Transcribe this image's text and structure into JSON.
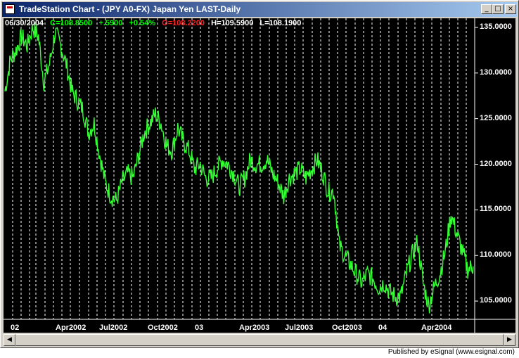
{
  "window": {
    "title": "TradeStation Chart - (JPY A0-FX) Japan Yen LAST-Daily",
    "buttons": {
      "minimize": "_",
      "maximize": "□",
      "close": "×"
    }
  },
  "header": {
    "date": "06/30/2004",
    "close": "C=108.8500",
    "change": "+.5900",
    "change_pct": "+0.54%",
    "open": "O=108.2200",
    "high": "H=109.5900",
    "low": "L=108.1900"
  },
  "colors": {
    "price_line": "#33ff33",
    "background": "#000000",
    "grid": "#ffffff",
    "open_text": "#ff2020"
  },
  "chart_data": {
    "type": "line",
    "series": [
      {
        "values": [
          128.0,
          131.5,
          132.5,
          134.0,
          133.0,
          135.0,
          134.0,
          129.0,
          131.0,
          134.5,
          133.0,
          131.0,
          128.0,
          127.0,
          126.0,
          123.5,
          124.5,
          121.0,
          118.0,
          116.5,
          116.0,
          118.0,
          119.0,
          118.5,
          121.0,
          123.5,
          124.5,
          125.5,
          124.5,
          122.0,
          121.5,
          124.0,
          122.5,
          121.5,
          119.5,
          120.0,
          118.5,
          118.5,
          119.5,
          120.5,
          120.0,
          119.0,
          117.5,
          118.5,
          120.5,
          120.0,
          120.0,
          120.5,
          119.0,
          118.0,
          116.5,
          118.5,
          119.0,
          119.5,
          118.5,
          119.5,
          120.5,
          119.0,
          117.0,
          117.0,
          111.0,
          110.0,
          109.0,
          108.0,
          107.0,
          108.0,
          107.5,
          106.5,
          107.0,
          106.0,
          105.5,
          105.5,
          108.0,
          110.0,
          111.5,
          107.0,
          104.5,
          106.5,
          108.0,
          110.5,
          114.5,
          112.5,
          110.5,
          108.5,
          108.8
        ]
      }
    ],
    "ylim": [
      103.0,
      136.0
    ],
    "y_ticks": [
      "135.0000",
      "130.0000",
      "125.0000",
      "120.0000",
      "115.0000",
      "110.0000",
      "105.0000"
    ],
    "x_ticks": [
      "02",
      "Apr2002",
      "Jul2002",
      "Oct2002",
      "03",
      "Apr2003",
      "Jul2003",
      "Oct2003",
      "04",
      "Apr2004"
    ],
    "grid": "vertical dashed"
  },
  "scrollbar": {
    "left_arrow": "◀",
    "right_arrow": "▶"
  },
  "status": {
    "text": "Published by eSignal (www.esignal.com)"
  }
}
